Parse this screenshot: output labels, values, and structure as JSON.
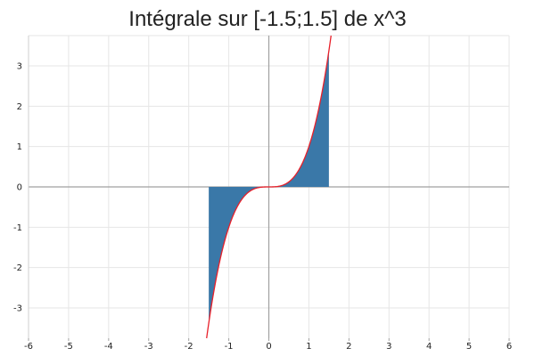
{
  "chart_data": {
    "type": "area",
    "title": "Intégrale sur [-1.5;1.5] de x^3",
    "xlabel": "",
    "ylabel": "",
    "function": "x^3",
    "interval": [
      -1.5,
      1.5
    ],
    "xlim": [
      -6,
      6
    ],
    "ylim": [
      -3.75,
      3.75
    ],
    "x_ticks": [
      -6,
      -5,
      -4,
      -3,
      -2,
      -1,
      0,
      1,
      2,
      3,
      4,
      5,
      6
    ],
    "y_ticks": [
      -3,
      -2,
      -1,
      0,
      1,
      2,
      3
    ],
    "grid": true,
    "legend": "none",
    "curve_color": "#e8202a",
    "fill_color": "#3a78a8",
    "axis_color": "#a0a0a0",
    "grid_color": "#e6e6e6"
  }
}
